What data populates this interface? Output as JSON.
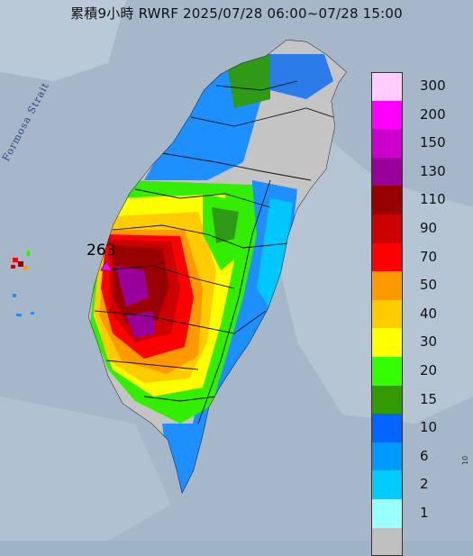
{
  "title": "累積9小時 RWRF 2025/07/28 06:00~07/28 15:00",
  "strait_label": "Formosa Strait",
  "max_value_label": "263",
  "corner_mark": "10",
  "legend": [
    {
      "label": "300",
      "color": "#ffccff"
    },
    {
      "label": "200",
      "color": "#ff00ff"
    },
    {
      "label": "150",
      "color": "#cc00cc"
    },
    {
      "label": "130",
      "color": "#990099"
    },
    {
      "label": "110",
      "color": "#990000"
    },
    {
      "label": "90",
      "color": "#cc0000"
    },
    {
      "label": "70",
      "color": "#ff0000"
    },
    {
      "label": "50",
      "color": "#ff9900"
    },
    {
      "label": "40",
      "color": "#ffcc00"
    },
    {
      "label": "30",
      "color": "#ffff00"
    },
    {
      "label": "20",
      "color": "#33ff00"
    },
    {
      "label": "15",
      "color": "#339900"
    },
    {
      "label": "10",
      "color": "#0066ff"
    },
    {
      "label": "6",
      "color": "#0099ff"
    },
    {
      "label": "2",
      "color": "#00ccff"
    },
    {
      "label": "1",
      "color": "#99ffff"
    },
    {
      "label": "",
      "color": "#c0c0c0"
    }
  ]
}
